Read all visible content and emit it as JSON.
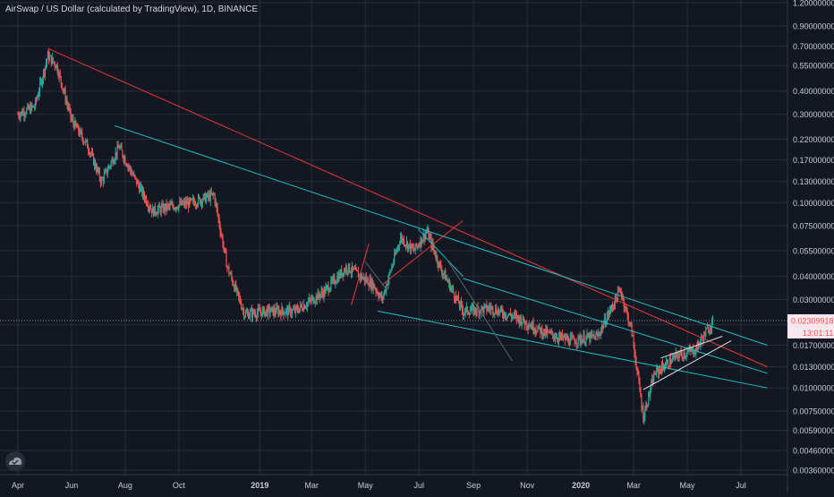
{
  "header": {
    "title": "AirSwap / US Dollar (calculated by TradingView), 1D, BINANCE"
  },
  "colors": {
    "background": "#131722",
    "grid": "#2a2e39",
    "up": "#26a69a",
    "down": "#ef5350",
    "red_line": "#e53935",
    "cyan_line": "#22c1c3",
    "white_line": "#e0e0e0",
    "axis_text": "#c8ccd6"
  },
  "price_axis": {
    "ticks": [
      "1.20000000",
      "0.90000000",
      "0.70000000",
      "0.55000000",
      "0.40000000",
      "0.30000000",
      "0.22000000",
      "0.17000000",
      "0.13000000",
      "0.10000000",
      "0.07500000",
      "0.05500000",
      "0.04000000",
      "0.03000000",
      "0.02200000",
      "0.01700000",
      "0.01300000",
      "0.01000000",
      "0.00750000",
      "0.00590000",
      "0.00460000",
      "0.00360000"
    ],
    "current_price": "0.02309918",
    "countdown": "13:01:11"
  },
  "time_axis": {
    "labels": [
      "Apr",
      "Jun",
      "Aug",
      "Oct",
      "2019",
      "Mar",
      "May",
      "Jul",
      "Sep",
      "Nov",
      "2020",
      "Mar",
      "May",
      "Jul"
    ]
  },
  "chart_data": {
    "type": "candlestick",
    "title": "AirSwap / US Dollar (calculated by TradingView), 1D, BINANCE",
    "scale": "log",
    "ylim": [
      0.0036,
      1.2
    ],
    "xlim": [
      "2018-04-01",
      "2020-07-31"
    ],
    "grid": true,
    "last_price": 0.02309918,
    "price_path": [
      [
        "2018-04-01",
        0.3
      ],
      [
        "2018-04-20",
        0.33
      ],
      [
        "2018-05-05",
        0.62
      ],
      [
        "2018-05-15",
        0.55
      ],
      [
        "2018-06-01",
        0.28
      ],
      [
        "2018-06-20",
        0.2
      ],
      [
        "2018-07-05",
        0.13
      ],
      [
        "2018-07-25",
        0.2
      ],
      [
        "2018-08-10",
        0.14
      ],
      [
        "2018-09-01",
        0.09
      ],
      [
        "2018-09-20",
        0.095
      ],
      [
        "2018-10-15",
        0.1
      ],
      [
        "2018-11-10",
        0.11
      ],
      [
        "2018-11-25",
        0.045
      ],
      [
        "2018-12-15",
        0.025
      ],
      [
        "2019-01-10",
        0.026
      ],
      [
        "2019-02-10",
        0.026
      ],
      [
        "2019-03-15",
        0.033
      ],
      [
        "2019-04-10",
        0.045
      ],
      [
        "2019-05-10",
        0.036
      ],
      [
        "2019-05-20",
        0.03
      ],
      [
        "2019-06-10",
        0.065
      ],
      [
        "2019-06-25",
        0.055
      ],
      [
        "2019-07-10",
        0.07
      ],
      [
        "2019-07-25",
        0.045
      ],
      [
        "2019-08-20",
        0.026
      ],
      [
        "2019-09-20",
        0.027
      ],
      [
        "2019-10-20",
        0.024
      ],
      [
        "2019-11-20",
        0.02
      ],
      [
        "2019-12-20",
        0.018
      ],
      [
        "2020-01-20",
        0.019
      ],
      [
        "2020-02-15",
        0.034
      ],
      [
        "2020-02-28",
        0.02
      ],
      [
        "2020-03-12",
        0.007
      ],
      [
        "2020-03-25",
        0.012
      ],
      [
        "2020-04-20",
        0.015
      ],
      [
        "2020-05-10",
        0.016
      ],
      [
        "2020-05-30",
        0.023
      ]
    ],
    "trendlines": [
      {
        "color": "red",
        "from": [
          "2018-05-05",
          0.68
        ],
        "to": [
          "2020-07-31",
          0.013
        ]
      },
      {
        "color": "cyan",
        "from": [
          "2018-07-20",
          0.26
        ],
        "to": [
          "2020-07-31",
          0.017
        ]
      },
      {
        "color": "cyan",
        "from": [
          "2019-05-15",
          0.026
        ],
        "to": [
          "2020-07-31",
          0.01
        ]
      },
      {
        "color": "cyan",
        "from": [
          "2019-08-20",
          0.039
        ],
        "to": [
          "2020-07-31",
          0.012
        ]
      },
      {
        "color": "cyan",
        "from": [
          "2019-06-30",
          0.072
        ],
        "to": [
          "2019-08-20",
          0.04
        ]
      },
      {
        "color": "red",
        "from": [
          "2019-04-15",
          0.028
        ],
        "to": [
          "2019-05-05",
          0.06
        ]
      },
      {
        "color": "red",
        "from": [
          "2019-05-20",
          0.036
        ],
        "to": [
          "2019-08-20",
          0.08
        ]
      },
      {
        "color": "white",
        "from": [
          "2020-03-12",
          0.0098
        ],
        "to": [
          "2020-06-20",
          0.018
        ]
      },
      {
        "color": "white",
        "from": [
          "2020-04-01",
          0.0145
        ],
        "to": [
          "2020-06-10",
          0.019
        ]
      },
      {
        "color": "grey",
        "from": [
          "2019-05-01",
          0.048
        ],
        "to": [
          "2019-05-25",
          0.034
        ]
      },
      {
        "color": "grey",
        "from": [
          "2019-08-01",
          0.05
        ],
        "to": [
          "2019-10-15",
          0.014
        ]
      }
    ]
  }
}
